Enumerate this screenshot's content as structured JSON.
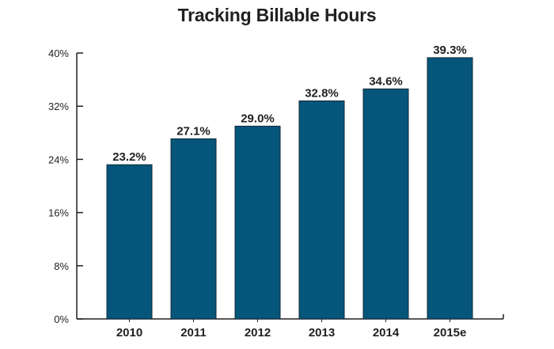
{
  "chart_data": {
    "type": "bar",
    "title": "Tracking Billable Hours",
    "xlabel": "",
    "ylabel": "",
    "categories": [
      "2010",
      "2011",
      "2012",
      "2013",
      "2014",
      "2015e"
    ],
    "values": [
      23.2,
      27.1,
      29.0,
      32.8,
      34.6,
      39.3
    ],
    "data_labels": [
      "23.2%",
      "27.1%",
      "29.0%",
      "32.8%",
      "34.6%",
      "39.3%"
    ],
    "ylim": [
      0,
      40
    ],
    "yticks": [
      0,
      8,
      16,
      24,
      32,
      40
    ],
    "ytick_labels": [
      "0%",
      "8%",
      "16%",
      "24%",
      "32%",
      "40%"
    ],
    "grid": false,
    "legend": "none",
    "colors": {
      "bar": "#06557a",
      "bar_outline": "#0f2a3a",
      "axis": "#231f20",
      "text": "#231f20"
    }
  }
}
